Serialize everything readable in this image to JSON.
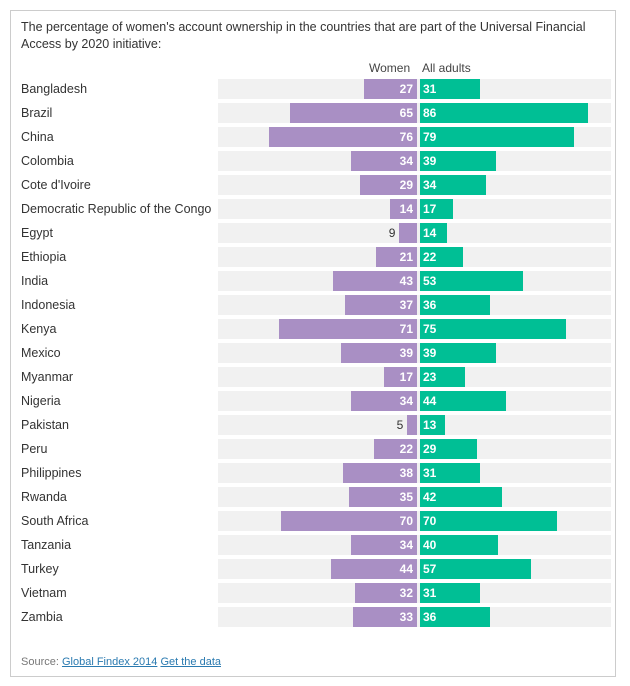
{
  "chart_data": {
    "type": "bar",
    "title": "The percentage of women's account ownership in the countries that are part of the Universal Financial Access by 2020 initiative:",
    "categories": [
      "Bangladesh",
      "Brazil",
      "China",
      "Colombia",
      "Cote d'Ivoire",
      "Democratic Republic of the Congo",
      "Egypt",
      "Ethiopia",
      "India",
      "Indonesia",
      "Kenya",
      "Mexico",
      "Myanmar",
      "Nigeria",
      "Pakistan",
      "Peru",
      "Philippines",
      "Rwanda",
      "South Africa",
      "Tanzania",
      "Turkey",
      "Vietnam",
      "Zambia"
    ],
    "series": [
      {
        "name": "Women",
        "color": "#a98fc4",
        "values": [
          27,
          65,
          76,
          34,
          29,
          14,
          9,
          21,
          43,
          37,
          71,
          39,
          17,
          34,
          5,
          22,
          38,
          35,
          70,
          34,
          44,
          32,
          33
        ]
      },
      {
        "name": "All adults",
        "color": "#00bf95",
        "values": [
          31,
          86,
          79,
          39,
          34,
          17,
          14,
          22,
          53,
          36,
          75,
          39,
          23,
          44,
          13,
          29,
          31,
          42,
          70,
          40,
          57,
          31,
          36
        ]
      }
    ],
    "xlim": [
      0,
      100
    ]
  },
  "source": {
    "label": "Source:",
    "link1": "Global Findex 2014",
    "link2": "Get the data"
  }
}
